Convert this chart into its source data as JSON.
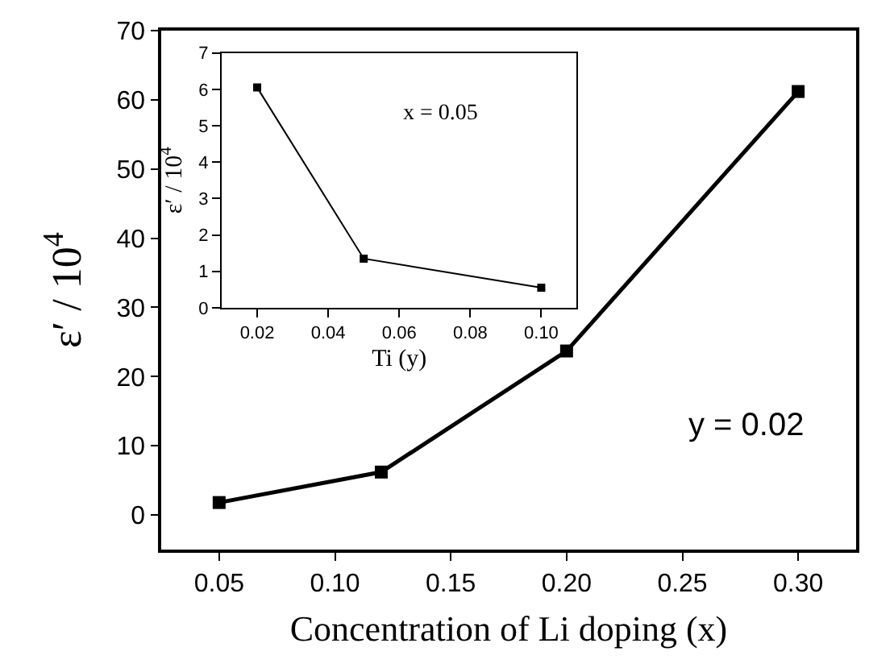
{
  "chart_data": [
    {
      "type": "line",
      "xlabel": "Concentration of Li doping (x)",
      "ylabel": "ε′ / 10$^{4}$",
      "x": [
        0.05,
        0.12,
        0.2,
        0.3
      ],
      "series": [
        {
          "color": "#000000",
          "values": [
            1.8,
            6.2,
            23.7,
            61.2
          ]
        }
      ],
      "xlim": [
        0.025,
        0.325
      ],
      "xticks": [
        0.05,
        {
          "value": 0.1,
          "label": "0.10"
        },
        0.15,
        {
          "value": 0.2,
          "label": "0.20"
        },
        0.25,
        {
          "value": 0.3,
          "label": "0.30"
        }
      ],
      "ylim": [
        -5,
        70
      ],
      "yticks": [
        0,
        10,
        20,
        30,
        40,
        50,
        60,
        70
      ],
      "marker": "square",
      "line_style": "solid",
      "annotations": [
        "y = 0.02"
      ]
    },
    {
      "type": "line",
      "xlabel": "Ti (y)",
      "ylabel": "ε′ / 10$^{4}$",
      "x": [
        0.02,
        0.05,
        0.1
      ],
      "series": [
        {
          "color": "#000000",
          "values": [
            6.05,
            1.35,
            0.55
          ]
        }
      ],
      "xlim": [
        0.01,
        0.11
      ],
      "xticks": [
        0.02,
        0.04,
        0.06,
        0.08,
        {
          "value": 0.1,
          "label": "0.10"
        }
      ],
      "ylim": [
        0,
        7
      ],
      "yticks": [
        0,
        1,
        2,
        3,
        4,
        5,
        6,
        7
      ],
      "marker": "square",
      "line_style": "solid",
      "annotations": [
        "x = 0.05"
      ]
    }
  ]
}
